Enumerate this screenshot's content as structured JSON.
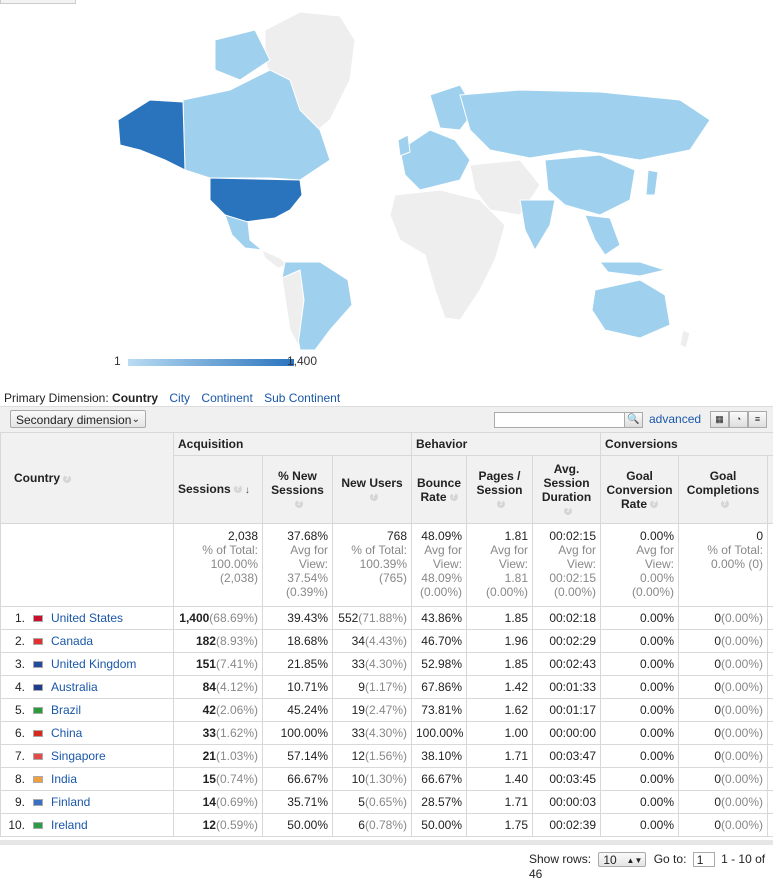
{
  "legend": {
    "min": "1",
    "max": "1,400"
  },
  "primary_dimension": {
    "label": "Primary Dimension:",
    "current": "Country",
    "options": [
      "City",
      "Continent",
      "Sub Continent"
    ]
  },
  "toolbar": {
    "secondary_dimension": "Secondary dimension",
    "advanced": "advanced"
  },
  "table": {
    "group_headers": {
      "acquisition": "Acquisition",
      "behavior": "Behavior",
      "conversions": "Conversions"
    },
    "headers": {
      "country": "Country",
      "sessions": "Sessions",
      "new_sessions": "% New Sessions",
      "new_users": "New Users",
      "bounce_rate": "Bounce Rate",
      "pages_session": "Pages / Session",
      "avg_duration": "Avg. Session Duration",
      "goal_conv": "Goal Conversion Rate",
      "goal_comp": "Goal Completions"
    },
    "totals": {
      "sessions": {
        "value": "2,038",
        "sub1": "% of Total:",
        "sub2": "100.00%",
        "sub3": "(2,038)"
      },
      "new_sessions": {
        "value": "37.68%",
        "sub1": "Avg for",
        "sub2": "View:",
        "sub3": "37.54%",
        "sub4": "(0.39%)"
      },
      "new_users": {
        "value": "768",
        "sub1": "% of Total:",
        "sub2": "100.39%",
        "sub3": "(765)"
      },
      "bounce_rate": {
        "value": "48.09%",
        "sub1": "Avg for",
        "sub2": "View:",
        "sub3": "48.09%",
        "sub4": "(0.00%)"
      },
      "pages_session": {
        "value": "1.81",
        "sub1": "Avg for",
        "sub2": "View:",
        "sub3": "1.81",
        "sub4": "(0.00%)"
      },
      "avg_duration": {
        "value": "00:02:15",
        "sub1": "Avg for",
        "sub2": "View:",
        "sub3": "00:02:15",
        "sub4": "(0.00%)"
      },
      "goal_conv": {
        "value": "0.00%",
        "sub1": "Avg for",
        "sub2": "View:",
        "sub3": "0.00%",
        "sub4": "(0.00%)"
      },
      "goal_comp": {
        "value": "0",
        "sub1": "% of Total:",
        "sub2": "0.00% (0)"
      }
    },
    "rows": [
      {
        "idx": "1.",
        "country": "United States",
        "flag": "#c8102e",
        "sessions": "1,400",
        "sessions_pct": "(68.69%)",
        "new_sessions": "39.43%",
        "new_users": "552",
        "new_users_pct": "(71.88%)",
        "bounce": "43.86%",
        "pages": "1.85",
        "duration": "00:02:18",
        "conv": "0.00%",
        "comp": "0",
        "comp_pct": "(0.00%)"
      },
      {
        "idx": "2.",
        "country": "Canada",
        "flag": "#e03030",
        "sessions": "182",
        "sessions_pct": "(8.93%)",
        "new_sessions": "18.68%",
        "new_users": "34",
        "new_users_pct": "(4.43%)",
        "bounce": "46.70%",
        "pages": "1.96",
        "duration": "00:02:29",
        "conv": "0.00%",
        "comp": "0",
        "comp_pct": "(0.00%)"
      },
      {
        "idx": "3.",
        "country": "United Kingdom",
        "flag": "#274b9c",
        "sessions": "151",
        "sessions_pct": "(7.41%)",
        "new_sessions": "21.85%",
        "new_users": "33",
        "new_users_pct": "(4.30%)",
        "bounce": "52.98%",
        "pages": "1.85",
        "duration": "00:02:43",
        "conv": "0.00%",
        "comp": "0",
        "comp_pct": "(0.00%)"
      },
      {
        "idx": "4.",
        "country": "Australia",
        "flag": "#1f3c8c",
        "sessions": "84",
        "sessions_pct": "(4.12%)",
        "new_sessions": "10.71%",
        "new_users": "9",
        "new_users_pct": "(1.17%)",
        "bounce": "67.86%",
        "pages": "1.42",
        "duration": "00:01:33",
        "conv": "0.00%",
        "comp": "0",
        "comp_pct": "(0.00%)"
      },
      {
        "idx": "5.",
        "country": "Brazil",
        "flag": "#2d9a3a",
        "sessions": "42",
        "sessions_pct": "(2.06%)",
        "new_sessions": "45.24%",
        "new_users": "19",
        "new_users_pct": "(2.47%)",
        "bounce": "73.81%",
        "pages": "1.62",
        "duration": "00:01:17",
        "conv": "0.00%",
        "comp": "0",
        "comp_pct": "(0.00%)"
      },
      {
        "idx": "6.",
        "country": "China",
        "flag": "#d52b1e",
        "sessions": "33",
        "sessions_pct": "(1.62%)",
        "new_sessions": "100.00%",
        "new_users": "33",
        "new_users_pct": "(4.30%)",
        "bounce": "100.00%",
        "pages": "1.00",
        "duration": "00:00:00",
        "conv": "0.00%",
        "comp": "0",
        "comp_pct": "(0.00%)"
      },
      {
        "idx": "7.",
        "country": "Singapore",
        "flag": "#e34a4a",
        "sessions": "21",
        "sessions_pct": "(1.03%)",
        "new_sessions": "57.14%",
        "new_users": "12",
        "new_users_pct": "(1.56%)",
        "bounce": "38.10%",
        "pages": "1.71",
        "duration": "00:03:47",
        "conv": "0.00%",
        "comp": "0",
        "comp_pct": "(0.00%)"
      },
      {
        "idx": "8.",
        "country": "India",
        "flag": "#f0a040",
        "sessions": "15",
        "sessions_pct": "(0.74%)",
        "new_sessions": "66.67%",
        "new_users": "10",
        "new_users_pct": "(1.30%)",
        "bounce": "66.67%",
        "pages": "1.40",
        "duration": "00:03:45",
        "conv": "0.00%",
        "comp": "0",
        "comp_pct": "(0.00%)"
      },
      {
        "idx": "9.",
        "country": "Finland",
        "flag": "#3a6fc4",
        "sessions": "14",
        "sessions_pct": "(0.69%)",
        "new_sessions": "35.71%",
        "new_users": "5",
        "new_users_pct": "(0.65%)",
        "bounce": "28.57%",
        "pages": "1.71",
        "duration": "00:00:03",
        "conv": "0.00%",
        "comp": "0",
        "comp_pct": "(0.00%)"
      },
      {
        "idx": "10.",
        "country": "Ireland",
        "flag": "#2e9a47",
        "sessions": "12",
        "sessions_pct": "(0.59%)",
        "new_sessions": "50.00%",
        "new_users": "6",
        "new_users_pct": "(0.78%)",
        "bounce": "50.00%",
        "pages": "1.75",
        "duration": "00:02:39",
        "conv": "0.00%",
        "comp": "0",
        "comp_pct": "(0.00%)"
      }
    ]
  },
  "footer": {
    "show_rows_label": "Show rows:",
    "show_rows_value": "10",
    "goto_label": "Go to:",
    "page_value": "1",
    "range": "1 - 10 of 46"
  },
  "colors": {
    "dark": "#2a73bd",
    "light": "#9fd1ee",
    "none": "#eeeeee"
  }
}
